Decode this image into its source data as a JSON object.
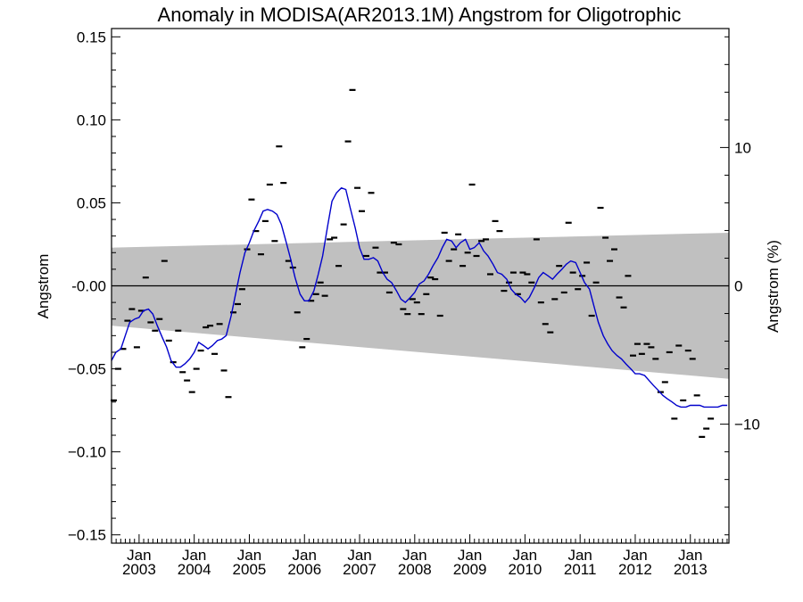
{
  "chart_data": {
    "type": "scatter",
    "title": "Anomaly in MODISA(AR2013.1M) Angstrom for Oligotrophic",
    "ylabel": "Angstrom",
    "ylabel_right": "Angstrom (%)",
    "ylim": [
      -0.155,
      0.155
    ],
    "ylim_right": [
      -18.6,
      18.6
    ],
    "y_ticks": [
      {
        "value": 0.15,
        "label": "0.15"
      },
      {
        "value": 0.1,
        "label": "0.10"
      },
      {
        "value": 0.05,
        "label": "0.05"
      },
      {
        "value": 0.0,
        "label": "-0.00"
      },
      {
        "value": -0.05,
        "label": "−0.05"
      },
      {
        "value": -0.1,
        "label": "−0.10"
      },
      {
        "value": -0.15,
        "label": "−0.15"
      }
    ],
    "y_ticks_right": [
      {
        "value": 10,
        "label": "10"
      },
      {
        "value": 0,
        "label": "0"
      },
      {
        "value": -10,
        "label": "−10"
      }
    ],
    "x_range": [
      2002.5,
      2013.7
    ],
    "x_ticks": [
      {
        "value": 2003.0,
        "month": "Jan",
        "year": "2003"
      },
      {
        "value": 2004.0,
        "month": "Jan",
        "year": "2004"
      },
      {
        "value": 2005.0,
        "month": "Jan",
        "year": "2005"
      },
      {
        "value": 2006.0,
        "month": "Jan",
        "year": "2006"
      },
      {
        "value": 2007.0,
        "month": "Jan",
        "year": "2007"
      },
      {
        "value": 2008.0,
        "month": "Jan",
        "year": "2008"
      },
      {
        "value": 2009.0,
        "month": "Jan",
        "year": "2009"
      },
      {
        "value": 2010.0,
        "month": "Jan",
        "year": "2010"
      },
      {
        "value": 2011.0,
        "month": "Jan",
        "year": "2011"
      },
      {
        "value": 2012.0,
        "month": "Jan",
        "year": "2012"
      },
      {
        "value": 2013.0,
        "month": "Jan",
        "year": "2013"
      }
    ],
    "zero_line": 0,
    "band": {
      "upper": [
        [
          2002.5,
          0.023
        ],
        [
          2013.7,
          0.032
        ]
      ],
      "lower": [
        [
          2002.5,
          -0.024
        ],
        [
          2013.7,
          -0.056
        ]
      ],
      "color": "#c0c0c0"
    },
    "colors": {
      "points": "#000000",
      "running_mean": "#0000cc",
      "zero_line": "#000000"
    },
    "points": [
      [
        2002.54,
        -0.069
      ],
      [
        2002.62,
        -0.05
      ],
      [
        2002.71,
        -0.038
      ],
      [
        2002.79,
        -0.021
      ],
      [
        2002.87,
        -0.014
      ],
      [
        2002.96,
        -0.037
      ],
      [
        2003.04,
        -0.015
      ],
      [
        2003.12,
        0.005
      ],
      [
        2003.21,
        -0.022
      ],
      [
        2003.29,
        -0.027
      ],
      [
        2003.37,
        -0.02
      ],
      [
        2003.46,
        0.015
      ],
      [
        2003.54,
        -0.033
      ],
      [
        2003.62,
        -0.046
      ],
      [
        2003.71,
        -0.027
      ],
      [
        2003.79,
        -0.052
      ],
      [
        2003.87,
        -0.057
      ],
      [
        2003.96,
        -0.064
      ],
      [
        2004.04,
        -0.05
      ],
      [
        2004.12,
        -0.039
      ],
      [
        2004.21,
        -0.025
      ],
      [
        2004.29,
        -0.024
      ],
      [
        2004.37,
        -0.041
      ],
      [
        2004.46,
        -0.023
      ],
      [
        2004.54,
        -0.051
      ],
      [
        2004.62,
        -0.067
      ],
      [
        2004.71,
        -0.016
      ],
      [
        2004.79,
        -0.011
      ],
      [
        2004.87,
        -0.002
      ],
      [
        2004.96,
        0.022
      ],
      [
        2005.04,
        0.052
      ],
      [
        2005.12,
        0.033
      ],
      [
        2005.21,
        0.019
      ],
      [
        2005.29,
        0.039
      ],
      [
        2005.37,
        0.061
      ],
      [
        2005.46,
        0.027
      ],
      [
        2005.54,
        0.084
      ],
      [
        2005.62,
        0.062
      ],
      [
        2005.71,
        0.015
      ],
      [
        2005.79,
        0.011
      ],
      [
        2005.87,
        -0.016
      ],
      [
        2005.96,
        -0.037
      ],
      [
        2006.04,
        -0.032
      ],
      [
        2006.12,
        -0.009
      ],
      [
        2006.21,
        -0.005
      ],
      [
        2006.29,
        0.002
      ],
      [
        2006.37,
        -0.006
      ],
      [
        2006.46,
        0.028
      ],
      [
        2006.54,
        0.029
      ],
      [
        2006.62,
        0.012
      ],
      [
        2006.71,
        0.037
      ],
      [
        2006.79,
        0.087
      ],
      [
        2006.87,
        0.118
      ],
      [
        2006.96,
        0.059
      ],
      [
        2007.04,
        0.045
      ],
      [
        2007.12,
        0.018
      ],
      [
        2007.21,
        0.056
      ],
      [
        2007.29,
        0.023
      ],
      [
        2007.37,
        0.008
      ],
      [
        2007.46,
        0.008
      ],
      [
        2007.54,
        -0.004
      ],
      [
        2007.62,
        0.026
      ],
      [
        2007.71,
        0.025
      ],
      [
        2007.79,
        -0.014
      ],
      [
        2007.87,
        -0.017
      ],
      [
        2007.96,
        -0.008
      ],
      [
        2008.04,
        -0.01
      ],
      [
        2008.12,
        -0.017
      ],
      [
        2008.21,
        -0.005
      ],
      [
        2008.29,
        0.005
      ],
      [
        2008.37,
        0.004
      ],
      [
        2008.46,
        -0.018
      ],
      [
        2008.54,
        0.032
      ],
      [
        2008.62,
        0.015
      ],
      [
        2008.71,
        0.022
      ],
      [
        2008.79,
        0.031
      ],
      [
        2008.87,
        0.012
      ],
      [
        2008.96,
        0.02
      ],
      [
        2009.04,
        0.061
      ],
      [
        2009.12,
        0.018
      ],
      [
        2009.21,
        0.027
      ],
      [
        2009.29,
        0.028
      ],
      [
        2009.37,
        0.007
      ],
      [
        2009.46,
        0.039
      ],
      [
        2009.54,
        0.033
      ],
      [
        2009.62,
        -0.003
      ],
      [
        2009.71,
        0.002
      ],
      [
        2009.79,
        0.008
      ],
      [
        2009.87,
        -0.005
      ],
      [
        2009.96,
        0.008
      ],
      [
        2010.04,
        0.007
      ],
      [
        2010.12,
        0.002
      ],
      [
        2010.21,
        0.028
      ],
      [
        2010.29,
        -0.01
      ],
      [
        2010.37,
        -0.023
      ],
      [
        2010.46,
        -0.028
      ],
      [
        2010.54,
        -0.008
      ],
      [
        2010.62,
        0.012
      ],
      [
        2010.71,
        -0.004
      ],
      [
        2010.79,
        0.038
      ],
      [
        2010.87,
        0.008
      ],
      [
        2010.96,
        -0.002
      ],
      [
        2011.04,
        0.006
      ],
      [
        2011.12,
        0.014
      ],
      [
        2011.21,
        -0.018
      ],
      [
        2011.29,
        0.002
      ],
      [
        2011.37,
        0.047
      ],
      [
        2011.46,
        0.029
      ],
      [
        2011.54,
        0.015
      ],
      [
        2011.62,
        0.022
      ],
      [
        2011.71,
        -0.007
      ],
      [
        2011.79,
        -0.013
      ],
      [
        2011.87,
        0.006
      ],
      [
        2011.96,
        -0.042
      ],
      [
        2012.04,
        -0.035
      ],
      [
        2012.12,
        -0.041
      ],
      [
        2012.21,
        -0.035
      ],
      [
        2012.29,
        -0.037
      ],
      [
        2012.37,
        -0.044
      ],
      [
        2012.46,
        -0.064
      ],
      [
        2012.54,
        -0.058
      ],
      [
        2012.62,
        -0.04
      ],
      [
        2012.71,
        -0.08
      ],
      [
        2012.79,
        -0.036
      ],
      [
        2012.87,
        -0.069
      ],
      [
        2012.96,
        -0.039
      ],
      [
        2013.04,
        -0.044
      ],
      [
        2013.12,
        -0.066
      ],
      [
        2013.21,
        -0.091
      ],
      [
        2013.29,
        -0.086
      ],
      [
        2013.37,
        -0.08
      ]
    ],
    "running_mean": [
      [
        2002.5,
        -0.045
      ],
      [
        2002.58,
        -0.04
      ],
      [
        2002.67,
        -0.038
      ],
      [
        2002.75,
        -0.03
      ],
      [
        2002.83,
        -0.022
      ],
      [
        2002.92,
        -0.02
      ],
      [
        2003.0,
        -0.019
      ],
      [
        2003.08,
        -0.015
      ],
      [
        2003.17,
        -0.014
      ],
      [
        2003.25,
        -0.017
      ],
      [
        2003.33,
        -0.024
      ],
      [
        2003.42,
        -0.031
      ],
      [
        2003.5,
        -0.037
      ],
      [
        2003.58,
        -0.045
      ],
      [
        2003.67,
        -0.049
      ],
      [
        2003.75,
        -0.049
      ],
      [
        2003.83,
        -0.047
      ],
      [
        2003.92,
        -0.044
      ],
      [
        2004.0,
        -0.04
      ],
      [
        2004.08,
        -0.034
      ],
      [
        2004.17,
        -0.036
      ],
      [
        2004.25,
        -0.038
      ],
      [
        2004.33,
        -0.036
      ],
      [
        2004.42,
        -0.033
      ],
      [
        2004.5,
        -0.032
      ],
      [
        2004.58,
        -0.03
      ],
      [
        2004.67,
        -0.018
      ],
      [
        2004.75,
        -0.005
      ],
      [
        2004.83,
        0.008
      ],
      [
        2004.92,
        0.02
      ],
      [
        2005.0,
        0.026
      ],
      [
        2005.08,
        0.033
      ],
      [
        2005.17,
        0.039
      ],
      [
        2005.25,
        0.045
      ],
      [
        2005.33,
        0.046
      ],
      [
        2005.42,
        0.045
      ],
      [
        2005.5,
        0.043
      ],
      [
        2005.58,
        0.037
      ],
      [
        2005.67,
        0.026
      ],
      [
        2005.75,
        0.016
      ],
      [
        2005.83,
        0.005
      ],
      [
        2005.92,
        -0.005
      ],
      [
        2006.0,
        -0.009
      ],
      [
        2006.08,
        -0.009
      ],
      [
        2006.17,
        -0.003
      ],
      [
        2006.25,
        0.007
      ],
      [
        2006.33,
        0.018
      ],
      [
        2006.42,
        0.036
      ],
      [
        2006.5,
        0.051
      ],
      [
        2006.58,
        0.056
      ],
      [
        2006.67,
        0.059
      ],
      [
        2006.75,
        0.058
      ],
      [
        2006.83,
        0.047
      ],
      [
        2006.92,
        0.035
      ],
      [
        2007.0,
        0.023
      ],
      [
        2007.08,
        0.016
      ],
      [
        2007.17,
        0.016
      ],
      [
        2007.25,
        0.017
      ],
      [
        2007.33,
        0.015
      ],
      [
        2007.42,
        0.008
      ],
      [
        2007.5,
        0.004
      ],
      [
        2007.58,
        0.002
      ],
      [
        2007.67,
        -0.003
      ],
      [
        2007.75,
        -0.008
      ],
      [
        2007.83,
        -0.01
      ],
      [
        2007.92,
        -0.007
      ],
      [
        2008.0,
        -0.004
      ],
      [
        2008.08,
        0.001
      ],
      [
        2008.17,
        0.003
      ],
      [
        2008.25,
        0.007
      ],
      [
        2008.33,
        0.012
      ],
      [
        2008.42,
        0.017
      ],
      [
        2008.5,
        0.023
      ],
      [
        2008.58,
        0.028
      ],
      [
        2008.67,
        0.027
      ],
      [
        2008.75,
        0.023
      ],
      [
        2008.83,
        0.026
      ],
      [
        2008.92,
        0.028
      ],
      [
        2009.0,
        0.022
      ],
      [
        2009.08,
        0.023
      ],
      [
        2009.17,
        0.026
      ],
      [
        2009.25,
        0.021
      ],
      [
        2009.33,
        0.018
      ],
      [
        2009.42,
        0.013
      ],
      [
        2009.5,
        0.008
      ],
      [
        2009.58,
        0.007
      ],
      [
        2009.67,
        0.004
      ],
      [
        2009.75,
        -0.002
      ],
      [
        2009.83,
        -0.005
      ],
      [
        2009.92,
        -0.007
      ],
      [
        2010.0,
        -0.01
      ],
      [
        2010.08,
        -0.007
      ],
      [
        2010.17,
        -0.001
      ],
      [
        2010.25,
        0.005
      ],
      [
        2010.33,
        0.008
      ],
      [
        2010.42,
        0.006
      ],
      [
        2010.5,
        0.004
      ],
      [
        2010.58,
        0.007
      ],
      [
        2010.67,
        0.01
      ],
      [
        2010.75,
        0.013
      ],
      [
        2010.83,
        0.015
      ],
      [
        2010.92,
        0.014
      ],
      [
        2011.0,
        0.008
      ],
      [
        2011.08,
        0.002
      ],
      [
        2011.17,
        -0.002
      ],
      [
        2011.25,
        -0.012
      ],
      [
        2011.33,
        -0.022
      ],
      [
        2011.42,
        -0.03
      ],
      [
        2011.5,
        -0.035
      ],
      [
        2011.58,
        -0.039
      ],
      [
        2011.67,
        -0.042
      ],
      [
        2011.75,
        -0.044
      ],
      [
        2011.83,
        -0.047
      ],
      [
        2011.92,
        -0.05
      ],
      [
        2012.0,
        -0.053
      ],
      [
        2012.08,
        -0.053
      ],
      [
        2012.17,
        -0.054
      ],
      [
        2012.25,
        -0.057
      ],
      [
        2012.33,
        -0.06
      ],
      [
        2012.42,
        -0.063
      ],
      [
        2012.5,
        -0.066
      ],
      [
        2012.58,
        -0.068
      ],
      [
        2012.67,
        -0.07
      ],
      [
        2012.75,
        -0.072
      ],
      [
        2012.83,
        -0.073
      ],
      [
        2012.92,
        -0.073
      ],
      [
        2013.0,
        -0.072
      ],
      [
        2013.08,
        -0.072
      ],
      [
        2013.17,
        -0.072
      ],
      [
        2013.25,
        -0.073
      ],
      [
        2013.33,
        -0.073
      ],
      [
        2013.42,
        -0.073
      ],
      [
        2013.5,
        -0.073
      ],
      [
        2013.58,
        -0.072
      ],
      [
        2013.67,
        -0.072
      ]
    ]
  }
}
